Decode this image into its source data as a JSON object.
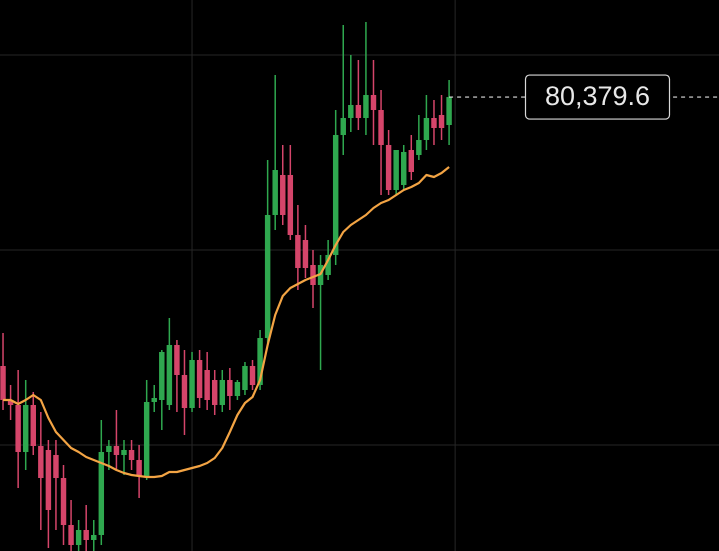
{
  "chart_data": {
    "type": "candlestick",
    "categories": [
      null,
      null,
      null,
      null,
      null,
      null,
      null,
      null,
      null,
      null,
      null,
      null,
      null,
      null,
      null,
      null,
      null,
      null,
      null,
      null,
      null,
      null,
      null,
      null,
      null,
      null,
      null,
      null,
      null,
      null,
      null,
      null,
      null,
      null,
      null,
      null,
      null,
      null,
      null,
      null,
      null,
      null,
      null,
      null,
      null,
      null,
      null,
      null,
      null,
      null,
      null,
      null,
      null,
      null,
      null,
      null,
      null,
      null,
      null,
      null
    ],
    "open": [
      77690,
      77350,
      77300,
      76830,
      77300,
      76890,
      76850,
      76800,
      76570,
      76100,
      75900,
      76050,
      75950,
      76000,
      76830,
      76890,
      76800,
      76850,
      76750,
      76590,
      77330,
      77350,
      77300,
      77900,
      77600,
      77270,
      77750,
      77650,
      77550,
      77300,
      77550,
      77390,
      77450,
      77690,
      77500,
      77970,
      79200,
      79600,
      79600,
      79000,
      78950,
      78700,
      78500,
      78600,
      78800,
      80000,
      80170,
      80300,
      80170,
      80400,
      80250,
      79900,
      79450,
      79500,
      79850,
      79800,
      79950,
      80170,
      80200,
      80100
    ],
    "high": [
      78020,
      77500,
      77650,
      77550,
      77430,
      77230,
      76950,
      76950,
      76700,
      76350,
      76150,
      76300,
      76150,
      77150,
      76950,
      77250,
      76950,
      76950,
      76900,
      77550,
      77500,
      77850,
      78170,
      77950,
      77850,
      77830,
      77850,
      77830,
      77650,
      77650,
      77670,
      77550,
      77730,
      77750,
      78050,
      79750,
      80600,
      79900,
      79900,
      79300,
      79100,
      78850,
      78800,
      78950,
      80250,
      81100,
      80800,
      80750,
      81130,
      80750,
      80450,
      80050,
      79850,
      79900,
      80000,
      80200,
      80400,
      80350,
      80400,
      80550
    ],
    "low": [
      77250,
      77150,
      76470,
      76650,
      76800,
      76050,
      75870,
      76050,
      75900,
      75840,
      75840,
      75840,
      75840,
      75900,
      76650,
      76650,
      76600,
      76650,
      76370,
      76550,
      77230,
      77050,
      77250,
      77230,
      77000,
      77230,
      77270,
      77250,
      77200,
      77230,
      77250,
      77350,
      77400,
      77450,
      77450,
      77900,
      79050,
      79100,
      78950,
      78450,
      78570,
      78270,
      77650,
      78550,
      78700,
      79800,
      80030,
      80050,
      80000,
      79900,
      79400,
      79400,
      79400,
      79450,
      79550,
      79750,
      79850,
      79900,
      79950,
      79900
    ],
    "close": [
      77350,
      77300,
      76830,
      77300,
      76890,
      76570,
      76250,
      76570,
      76100,
      75900,
      76050,
      75950,
      76000,
      76830,
      76890,
      76800,
      76850,
      76750,
      76590,
      77330,
      77370,
      77830,
      77900,
      77600,
      77270,
      77750,
      77370,
      77350,
      77300,
      77550,
      77390,
      77530,
      77690,
      77500,
      77970,
      79200,
      79650,
      79200,
      79000,
      78670,
      78670,
      78500,
      78700,
      78800,
      80000,
      80170,
      80300,
      80170,
      80400,
      80250,
      79900,
      79450,
      79850,
      79830,
      79630,
      79950,
      80170,
      80070,
      80070,
      80379.6
    ],
    "up_color": "#2fa84f",
    "down_color": "#d5456a",
    "line": {
      "color": "#f3a444",
      "values": [
        77350,
        77350,
        77310,
        77350,
        77400,
        77350,
        77170,
        77030,
        76950,
        76870,
        76830,
        76780,
        76750,
        76720,
        76690,
        76650,
        76620,
        76600,
        76590,
        76580,
        76580,
        76590,
        76630,
        76630,
        76650,
        76670,
        76690,
        76720,
        76770,
        76870,
        77030,
        77200,
        77320,
        77380,
        77550,
        77900,
        78200,
        78390,
        78470,
        78510,
        78550,
        78580,
        78610,
        78750,
        78900,
        79030,
        79100,
        79150,
        79200,
        79270,
        79320,
        79350,
        79400,
        79450,
        79480,
        79520,
        79600,
        79580,
        79620,
        79680
      ]
    },
    "last_price": {
      "value": 80379.6,
      "label": "80,379.6"
    },
    "ylim": [
      75840,
      81350
    ],
    "yticks": [
      80800,
      78850,
      76900
    ],
    "xlim": [
      -0.4,
      94.7
    ],
    "xticks": [
      25,
      59.8
    ],
    "grid": true
  }
}
